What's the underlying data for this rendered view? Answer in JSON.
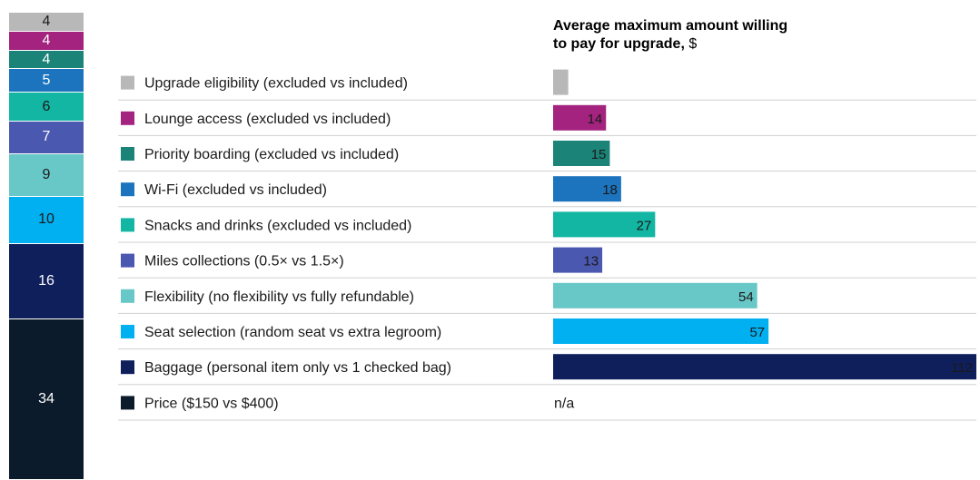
{
  "chart_data": [
    {
      "type": "bar",
      "title": "Average maximum amount willing to pay for upgrade,",
      "title_unit": "$",
      "categories": [
        "Upgrade eligibility (excluded vs included)",
        "Lounge access (excluded vs included)",
        "Priority boarding (excluded vs included)",
        "Wi-Fi (excluded vs included)",
        "Snacks and drinks (excluded vs included)",
        "Miles collections (0.5× vs 1.5×)",
        "Flexibility (no flexibility vs fully refundable)",
        "Seat selection (random seat vs extra legroom)",
        "Baggage (personal item only vs 1 checked bag)",
        "Price ($150 vs $400)"
      ],
      "values": [
        null,
        14,
        15,
        18,
        27,
        13,
        54,
        57,
        112,
        null
      ],
      "approx_values": [
        4,
        null,
        null,
        null,
        null,
        null,
        null,
        null,
        null,
        null
      ],
      "value_labels": [
        "",
        "14",
        "15",
        "18",
        "27",
        "13",
        "54",
        "57",
        "112",
        "n/a"
      ],
      "colors": [
        "#b8b8b8",
        "#a3237f",
        "#1b8377",
        "#1c73be",
        "#13b5a3",
        "#4a58b0",
        "#68c7c7",
        "#00b0f0",
        "#0f1f5c",
        "#0b1b2b"
      ],
      "xlim": [
        0,
        112
      ]
    },
    {
      "type": "bar",
      "orientation": "stacked-vertical",
      "values": [
        4,
        4,
        4,
        5,
        6,
        7,
        9,
        10,
        16,
        34
      ],
      "value_labels": [
        "4",
        "4",
        "4",
        "5",
        "6",
        "7",
        "9",
        "10",
        "16",
        "34"
      ],
      "colors": [
        "#b8b8b8",
        "#a3237f",
        "#1b8377",
        "#1c73be",
        "#13b5a3",
        "#4a58b0",
        "#68c7c7",
        "#00b0f0",
        "#0f1f5c",
        "#0b1b2b"
      ],
      "label_colors": [
        "#1a1a1a",
        "#ffffff",
        "#ffffff",
        "#ffffff",
        "#1a1a1a",
        "#ffffff",
        "#1a1a1a",
        "#1a1a1a",
        "#ffffff",
        "#ffffff"
      ]
    }
  ]
}
